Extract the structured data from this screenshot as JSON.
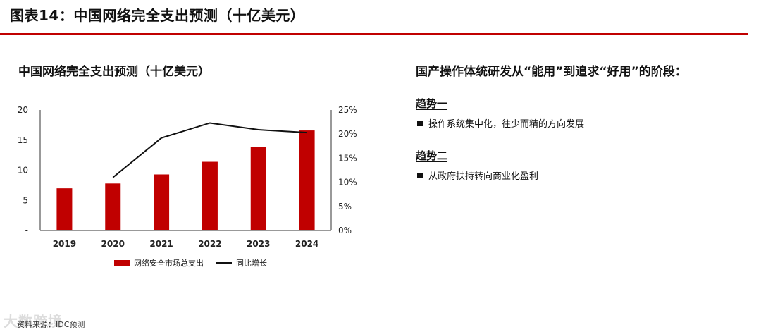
{
  "header": {
    "title": "图表14：中国网络完全支出预测（十亿美元）"
  },
  "chart_data": {
    "type": "bar",
    "title": "中国网络完全支出预测（十亿美元）",
    "categories": [
      "2019",
      "2020",
      "2021",
      "2022",
      "2023",
      "2024"
    ],
    "series": [
      {
        "name": "网络安全市场总支出",
        "type": "bar",
        "axis": "left",
        "values": [
          7.0,
          7.8,
          9.3,
          11.4,
          13.9,
          16.6
        ]
      },
      {
        "name": "同比增长",
        "type": "line",
        "axis": "right",
        "values": [
          null,
          0.11,
          0.192,
          0.223,
          0.209,
          0.203
        ]
      }
    ],
    "y_left": {
      "ylim": [
        0,
        20
      ],
      "ticks": [
        0,
        5,
        10,
        15,
        20
      ],
      "tick_labels": [
        "-",
        "5",
        "10",
        "15",
        "20"
      ]
    },
    "y_right": {
      "ylim": [
        0,
        0.25
      ],
      "ticks": [
        0,
        0.05,
        0.1,
        0.15,
        0.2,
        0.25
      ],
      "tick_labels": [
        "0%",
        "5%",
        "10%",
        "15%",
        "20%",
        "25%"
      ]
    },
    "legend_position": "bottom",
    "colors": {
      "bar": "#c00000",
      "line": "#111111"
    }
  },
  "right_panel": {
    "title": "国产操作体统研发从“能用”到追求“好用”的阶段：",
    "trends": [
      {
        "heading": "趋势一",
        "item": "操作系统集中化，往少而精的方向发展"
      },
      {
        "heading": "趋势二",
        "item": "从政府扶持转向商业化盈利"
      }
    ]
  },
  "footer": {
    "source": "资料来源：IDC预测",
    "watermark": "大数跨境"
  }
}
